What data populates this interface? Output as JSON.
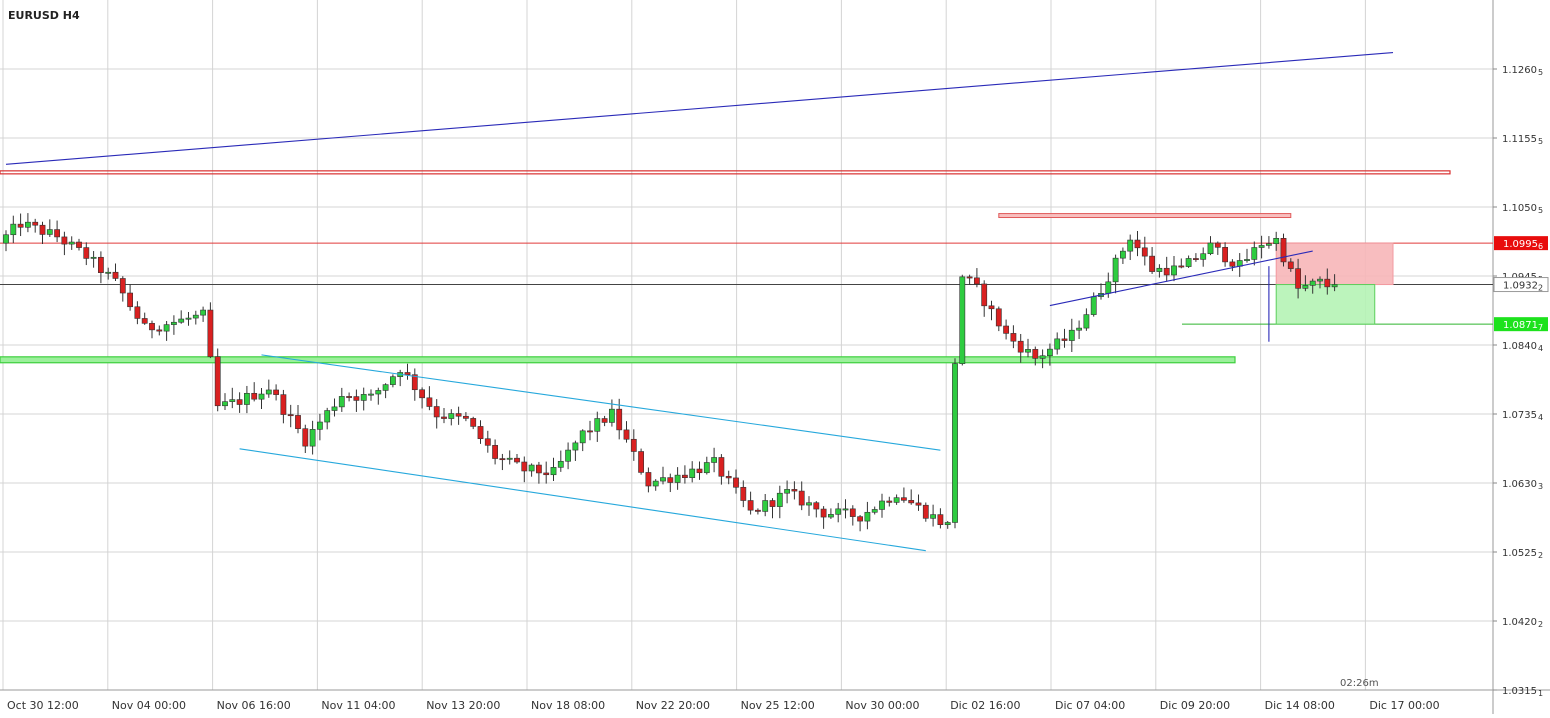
{
  "chart_data": {
    "type": "candlestick",
    "title": "EURUSD H4",
    "ylim": [
      1.0315,
      1.1365
    ],
    "y_ticks": [
      {
        "value": 1.126,
        "label": "1.1260",
        "sub": "5"
      },
      {
        "value": 1.1155,
        "label": "1.1155",
        "sub": "5"
      },
      {
        "value": 1.105,
        "label": "1.1050",
        "sub": "5"
      },
      {
        "value": 1.0945,
        "label": "1.0945",
        "sub": "5"
      },
      {
        "value": 1.084,
        "label": "1.0840",
        "sub": "4"
      },
      {
        "value": 1.0735,
        "label": "1.0735",
        "sub": "4"
      },
      {
        "value": 1.063,
        "label": "1.0630",
        "sub": "3"
      },
      {
        "value": 1.0525,
        "label": "1.0525",
        "sub": "2"
      },
      {
        "value": 1.042,
        "label": "1.0420",
        "sub": "2"
      },
      {
        "value": 1.0315,
        "label": "1.0315",
        "sub": "1"
      }
    ],
    "x_ticks": [
      "Oct 30 12:00",
      "Nov 04 00:00",
      "Nov 06 16:00",
      "Nov 11 04:00",
      "Nov 13 20:00",
      "Nov 18 08:00",
      "Nov 22 20:00",
      "Nov 25 12:00",
      "Nov 30 00:00",
      "Dic 02 16:00",
      "Dic 07 04:00",
      "Dic 09 20:00",
      "Dic 14 08:00",
      "Dic 17 00:00"
    ],
    "grid": true,
    "candle_count": 188,
    "anchors": [
      [
        0,
        1.0995
      ],
      [
        3,
        1.1025
      ],
      [
        8,
        1.1005
      ],
      [
        12,
        1.0975
      ],
      [
        16,
        1.0935
      ],
      [
        20,
        1.0865
      ],
      [
        24,
        1.0875
      ],
      [
        28,
        1.0885
      ],
      [
        30,
        1.0745
      ],
      [
        33,
        1.0755
      ],
      [
        37,
        1.0775
      ],
      [
        42,
        1.0695
      ],
      [
        47,
        1.0765
      ],
      [
        51,
        1.076
      ],
      [
        55,
        1.0805
      ],
      [
        60,
        1.0735
      ],
      [
        64,
        1.0725
      ],
      [
        68,
        1.067
      ],
      [
        72,
        1.065
      ],
      [
        76,
        1.0645
      ],
      [
        80,
        1.0705
      ],
      [
        84,
        1.0735
      ],
      [
        89,
        1.063
      ],
      [
        94,
        1.0645
      ],
      [
        98,
        1.066
      ],
      [
        103,
        1.0585
      ],
      [
        108,
        1.0615
      ],
      [
        113,
        1.0585
      ],
      [
        118,
        1.058
      ],
      [
        123,
        1.0615
      ],
      [
        127,
        1.0585
      ],
      [
        130,
        1.0565
      ],
      [
        131,
        1.0815
      ],
      [
        132,
        1.0945
      ],
      [
        134,
        1.0925
      ],
      [
        138,
        1.0855
      ],
      [
        142,
        1.082
      ],
      [
        147,
        1.0855
      ],
      [
        151,
        1.0925
      ],
      [
        155,
        1.1005
      ],
      [
        158,
        1.0955
      ],
      [
        162,
        1.0955
      ],
      [
        166,
        1.099
      ],
      [
        170,
        1.096
      ],
      [
        173,
        1.0995
      ],
      [
        175,
        1.1
      ],
      [
        178,
        1.0925
      ],
      [
        181,
        1.0935
      ],
      [
        182,
        1.093
      ]
    ],
    "horizontal_levels": [
      {
        "name": "resistance-band",
        "y1": 1.1105,
        "y2": 1.1102,
        "color": "#d93030",
        "style": "band"
      },
      {
        "name": "resistance-line",
        "value": 1.0995,
        "color": "#e03a3a"
      },
      {
        "name": "current-price-line",
        "value": 1.0932,
        "color": "#444444"
      },
      {
        "name": "support-band",
        "y1": 1.0822,
        "y2": 1.0813,
        "color": "#3ecf3e",
        "style": "band"
      },
      {
        "name": "target-line",
        "value": 1.08717,
        "color": "#2fb52f"
      }
    ],
    "trend_lines": [
      {
        "name": "long-uptrend-line",
        "from": [
          0,
          1.1115
        ],
        "to": [
          190,
          1.1285
        ],
        "color": "#2a2ab8"
      },
      {
        "name": "channel-upper-line",
        "from": [
          35,
          1.0825
        ],
        "to": [
          128,
          1.068
        ],
        "color": "#26a8dc"
      },
      {
        "name": "channel-lower-line",
        "from": [
          32,
          1.0682
        ],
        "to": [
          126,
          1.0527
        ],
        "color": "#26a8dc"
      },
      {
        "name": "rising-wedge-line",
        "from": [
          143,
          1.09
        ],
        "to": [
          179,
          1.0983
        ],
        "color": "#2a2ab8"
      },
      {
        "name": "vertical-marker-line",
        "from": [
          173,
          1.096
        ],
        "to": [
          173,
          1.0845
        ],
        "color": "#2a2ab8"
      }
    ],
    "zones": [
      {
        "name": "top-resistance-box",
        "x1": 136,
        "x2": 176,
        "y1": 1.104,
        "y2": 1.1034,
        "fill": "#f7b8b8",
        "stroke": "#e05a5a"
      },
      {
        "name": "stop-loss-zone",
        "x1": 174,
        "x2": 190,
        "y1": 1.0995,
        "y2": 1.0932,
        "fill": "#f7b6b8",
        "stroke": "#f29aa0"
      },
      {
        "name": "take-profit-zone",
        "x1": 174,
        "x2": 187.5,
        "y1": 1.0932,
        "y2": 1.08717,
        "fill": "#b5f3b5",
        "stroke": "#5ccf5c"
      }
    ],
    "price_tags": [
      {
        "label": "1.0995",
        "sub": "6",
        "value": 1.0995,
        "bg": "#e80c0c",
        "fg": "#ffffff"
      },
      {
        "label": "1.0932",
        "sub": "2",
        "value": 1.0932,
        "bg": "#ffffff",
        "fg": "#333333"
      },
      {
        "label": "1.0871",
        "sub": "7",
        "value": 1.08717,
        "bg": "#1de21d",
        "fg": "#ffffff"
      }
    ],
    "timer": "02:26m"
  }
}
